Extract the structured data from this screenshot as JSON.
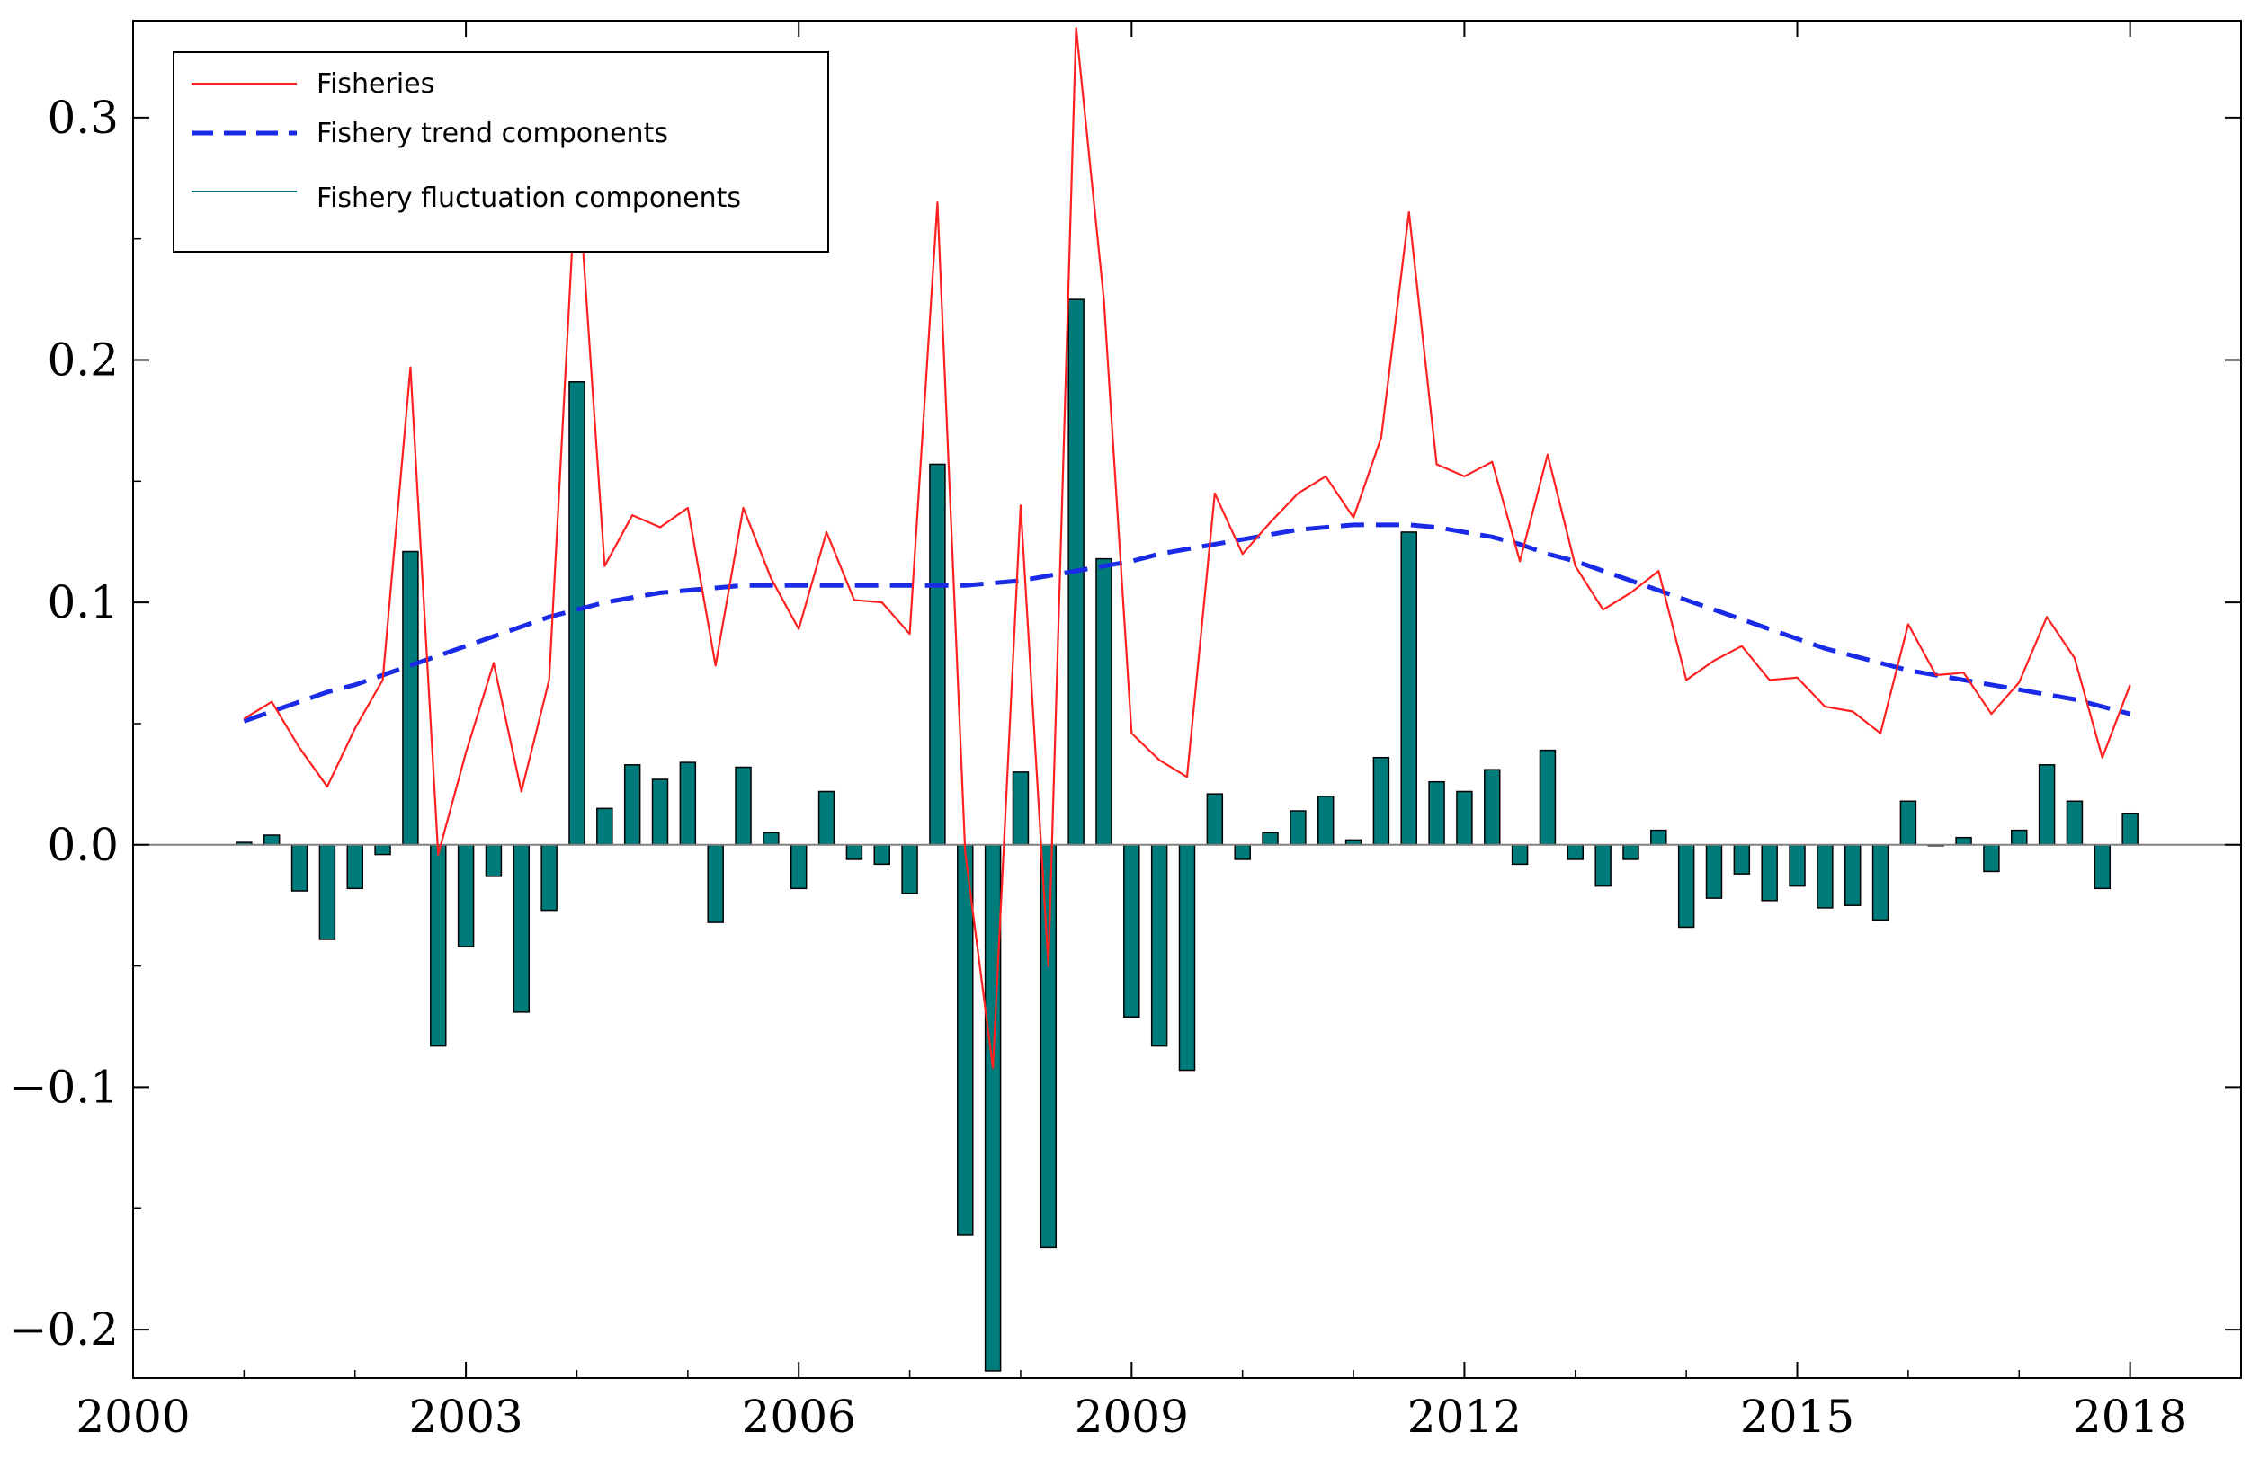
{
  "chart_data": {
    "type": "bar",
    "title": "",
    "xlabel": "",
    "ylabel": "",
    "xlim": [
      2000,
      2019
    ],
    "ylim": [
      -0.22,
      0.34
    ],
    "x_ticks": [
      2000,
      2003,
      2006,
      2009,
      2012,
      2015,
      2018
    ],
    "x_tick_labels": [
      "2000",
      "2003",
      "2006",
      "2009",
      "2012",
      "2015",
      "2018"
    ],
    "y_ticks": [
      -0.2,
      -0.1,
      0.0,
      0.1,
      0.2,
      0.3
    ],
    "y_tick_labels": [
      "−0.2",
      "−0.1",
      "0.0",
      "0.1",
      "0.2",
      "0.3"
    ],
    "grid": false,
    "legend_position": "top-left",
    "x": [
      2001.0,
      2001.25,
      2001.5,
      2001.75,
      2002.0,
      2002.25,
      2002.5,
      2002.75,
      2003.0,
      2003.25,
      2003.5,
      2003.75,
      2004.0,
      2004.25,
      2004.5,
      2004.75,
      2005.0,
      2005.25,
      2005.5,
      2005.75,
      2006.0,
      2006.25,
      2006.5,
      2006.75,
      2007.0,
      2007.25,
      2007.5,
      2007.75,
      2008.0,
      2008.25,
      2008.5,
      2008.75,
      2009.0,
      2009.25,
      2009.5,
      2009.75,
      2010.0,
      2010.25,
      2010.5,
      2010.75,
      2011.0,
      2011.25,
      2011.5,
      2011.75,
      2012.0,
      2012.25,
      2012.5,
      2012.75,
      2013.0,
      2013.25,
      2013.5,
      2013.75,
      2014.0,
      2014.25,
      2014.5,
      2014.75,
      2015.0,
      2015.25,
      2015.5,
      2015.75,
      2016.0,
      2016.25,
      2016.5,
      2016.75,
      2017.0,
      2017.25,
      2017.5,
      2017.75,
      2018.0
    ],
    "series": [
      {
        "name": "Fisheries",
        "kind": "line",
        "color": "#ff2020",
        "values": [
          0.052,
          0.059,
          0.04,
          0.024,
          0.048,
          0.068,
          0.197,
          -0.004,
          0.038,
          0.075,
          0.022,
          0.068,
          0.283,
          0.115,
          0.136,
          0.131,
          0.139,
          0.074,
          0.139,
          0.11,
          0.089,
          0.129,
          0.101,
          0.1,
          0.087,
          0.265,
          -0.003,
          -0.092,
          0.14,
          -0.05,
          0.337,
          0.225,
          0.046,
          0.035,
          0.028,
          0.145,
          0.12,
          0.133,
          0.145,
          0.152,
          0.135,
          0.168,
          0.261,
          0.157,
          0.152,
          0.158,
          0.117,
          0.161,
          0.115,
          0.097,
          0.104,
          0.113,
          0.068,
          0.076,
          0.082,
          0.068,
          0.069,
          0.057,
          0.055,
          0.046,
          0.091,
          0.07,
          0.071,
          0.054,
          0.067,
          0.094,
          0.077,
          0.036,
          0.066
        ]
      },
      {
        "name": "Fishery trend components",
        "kind": "dashed-line",
        "color": "#1a2be8",
        "values": [
          0.051,
          0.055,
          0.059,
          0.063,
          0.066,
          0.07,
          0.074,
          0.078,
          0.082,
          0.086,
          0.09,
          0.094,
          0.097,
          0.1,
          0.102,
          0.104,
          0.105,
          0.106,
          0.107,
          0.107,
          0.107,
          0.107,
          0.107,
          0.107,
          0.107,
          0.107,
          0.107,
          0.108,
          0.109,
          0.111,
          0.113,
          0.115,
          0.117,
          0.12,
          0.122,
          0.124,
          0.126,
          0.128,
          0.13,
          0.131,
          0.132,
          0.132,
          0.132,
          0.131,
          0.129,
          0.127,
          0.124,
          0.12,
          0.117,
          0.113,
          0.109,
          0.105,
          0.101,
          0.097,
          0.093,
          0.089,
          0.085,
          0.081,
          0.078,
          0.075,
          0.072,
          0.07,
          0.068,
          0.066,
          0.064,
          0.062,
          0.06,
          0.057,
          0.054
        ]
      },
      {
        "name": "Fishery fluctuation components",
        "kind": "bar",
        "color": "#007b7b",
        "values": [
          0.001,
          0.004,
          -0.019,
          -0.039,
          -0.018,
          -0.004,
          0.121,
          -0.083,
          -0.042,
          -0.013,
          -0.069,
          -0.027,
          0.191,
          0.015,
          0.033,
          0.027,
          0.034,
          -0.032,
          0.032,
          0.005,
          -0.018,
          0.022,
          -0.006,
          -0.008,
          -0.02,
          0.157,
          -0.161,
          -0.217,
          0.03,
          -0.166,
          0.225,
          0.118,
          -0.071,
          -0.083,
          -0.093,
          0.021,
          -0.006,
          0.005,
          0.014,
          0.02,
          0.002,
          0.036,
          0.129,
          0.026,
          0.022,
          0.031,
          -0.008,
          0.039,
          -0.006,
          -0.017,
          -0.006,
          0.006,
          -0.034,
          -0.022,
          -0.012,
          -0.023,
          -0.017,
          -0.026,
          -0.025,
          -0.031,
          0.018,
          0.0,
          0.003,
          -0.011,
          0.006,
          0.033,
          0.018,
          -0.018,
          0.013
        ]
      }
    ]
  }
}
